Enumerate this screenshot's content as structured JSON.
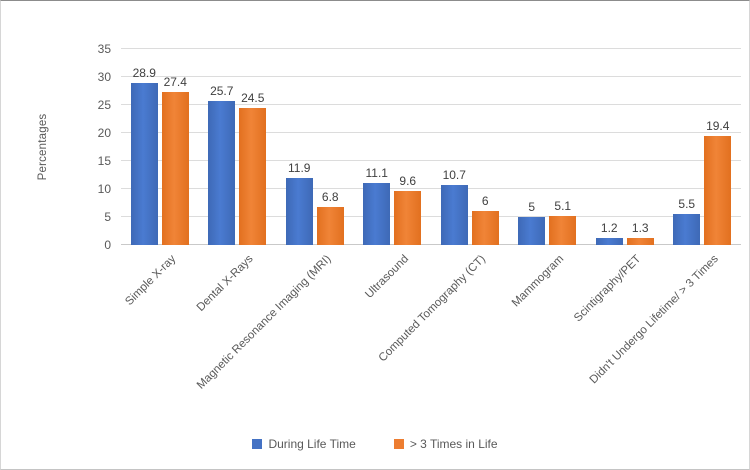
{
  "chart_data": {
    "type": "bar",
    "title": "",
    "xlabel": "",
    "ylabel": "Percentages",
    "ylim": [
      0,
      35
    ],
    "yticks": [
      0,
      5,
      10,
      15,
      20,
      25,
      30,
      35
    ],
    "grid": true,
    "legend_position": "bottom",
    "categories": [
      "Simple X-ray",
      "Dental X-Rays",
      "Magnetic Resonance Imaging (MRI)",
      "Ultrasound",
      "Computed Tomography (CT)",
      "Mammogram",
      "Scintigraphy/PET",
      "Didn't Undergo Lifetime/ > 3 Times"
    ],
    "series": [
      {
        "name": "During Life Time",
        "color": "#4472C4",
        "values": [
          28.9,
          25.7,
          11.9,
          11.1,
          10.7,
          5,
          1.2,
          5.5
        ]
      },
      {
        "name": "> 3 Times in Life",
        "color": "#ED7D31",
        "values": [
          27.4,
          24.5,
          6.8,
          9.6,
          6,
          5.1,
          1.3,
          19.4
        ]
      }
    ]
  }
}
